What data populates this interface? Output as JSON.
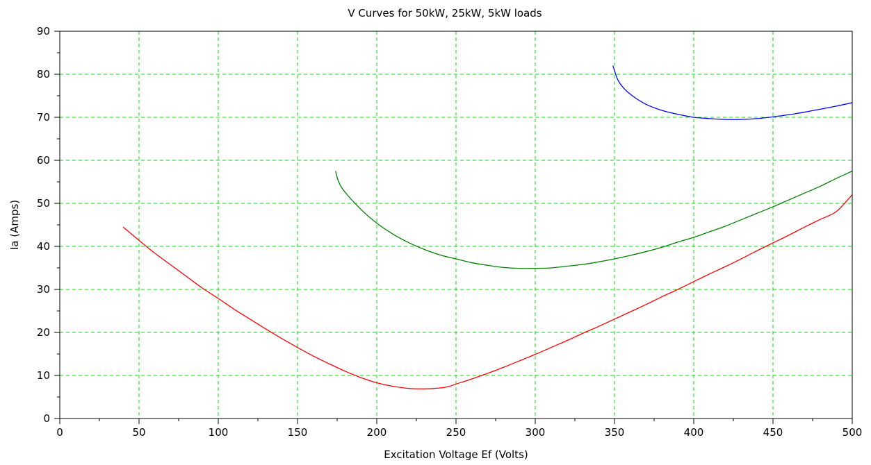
{
  "chart_data": {
    "type": "line",
    "title": "V Curves for 50kW, 25kW, 5kW loads",
    "xlabel": "Excitation Voltage Ef (Volts)",
    "ylabel": "Ia (Amps)",
    "xlim": [
      0,
      500
    ],
    "ylim": [
      0,
      90
    ],
    "xticks": [
      0,
      50,
      100,
      150,
      200,
      250,
      300,
      350,
      400,
      450,
      500
    ],
    "yticks": [
      0,
      10,
      20,
      30,
      40,
      50,
      60,
      70,
      80,
      90
    ],
    "grid": true,
    "series": [
      {
        "color": "#0000ff",
        "x": [
          349,
          352,
          356,
          362,
          370,
          380,
          390,
          400,
          410,
          420,
          430,
          440,
          450,
          460,
          470,
          480,
          490,
          500
        ],
        "y": [
          82.0,
          78.8,
          76.7,
          74.8,
          73.0,
          71.6,
          70.7,
          70.0,
          69.7,
          69.5,
          69.5,
          69.7,
          70.1,
          70.6,
          71.2,
          71.9,
          72.6,
          73.4
        ]
      },
      {
        "color": "#007f00",
        "x": [
          174,
          176,
          180,
          190,
          200,
          210,
          220,
          230,
          240,
          250,
          260,
          270,
          280,
          290,
          300,
          310,
          320,
          330,
          340,
          350,
          360,
          370,
          380,
          390,
          400,
          410,
          420,
          430,
          440,
          450,
          460,
          470,
          480,
          490,
          500
        ],
        "y": [
          57.5,
          55.0,
          52.6,
          48.6,
          45.4,
          42.9,
          40.9,
          39.3,
          38.0,
          37.1,
          36.2,
          35.6,
          35.1,
          34.9,
          34.9,
          35.0,
          35.4,
          35.8,
          36.4,
          37.1,
          37.9,
          38.8,
          39.8,
          41.0,
          42.1,
          43.4,
          44.7,
          46.2,
          47.7,
          49.2,
          50.8,
          52.4,
          54.0,
          55.8,
          57.5
        ]
      },
      {
        "color": "#ff0000",
        "x": [
          40,
          50,
          60,
          70,
          80,
          90,
          100,
          110,
          120,
          130,
          140,
          150,
          160,
          170,
          180,
          190,
          200,
          210,
          220,
          230,
          240,
          245,
          250,
          260,
          270,
          280,
          290,
          300,
          310,
          320,
          330,
          340,
          350,
          360,
          370,
          380,
          390,
          400,
          410,
          420,
          430,
          440,
          450,
          460,
          470,
          480,
          490,
          500
        ],
        "y": [
          44.5,
          41.4,
          38.4,
          35.7,
          33.0,
          30.3,
          27.9,
          25.4,
          23.1,
          20.8,
          18.6,
          16.5,
          14.5,
          12.7,
          11.0,
          9.5,
          8.3,
          7.5,
          7.0,
          6.9,
          7.1,
          7.4,
          8.0,
          9.2,
          10.5,
          11.9,
          13.4,
          14.9,
          16.5,
          18.1,
          19.8,
          21.4,
          23.1,
          24.8,
          26.5,
          28.3,
          30.0,
          31.8,
          33.6,
          35.3,
          37.1,
          39.0,
          40.8,
          42.6,
          44.5,
          46.3,
          48.1,
          52.0
        ]
      }
    ]
  }
}
